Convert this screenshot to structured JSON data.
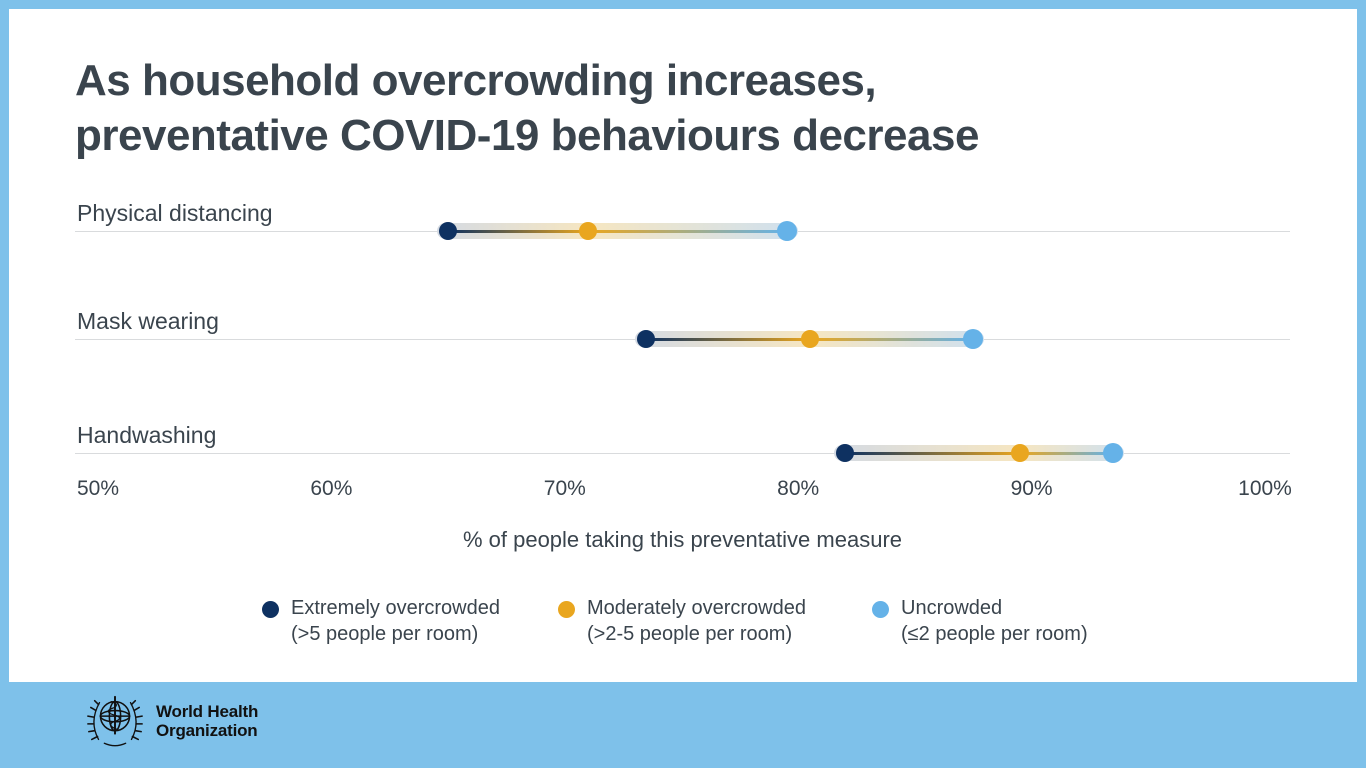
{
  "title": {
    "line1": "As household overcrowding increases,",
    "line2": "preventative COVID-19 behaviours decrease"
  },
  "chart_data": {
    "type": "scatter",
    "variant": "dumbbell-dot-plot",
    "categories": [
      "Physical distancing",
      "Mask wearing",
      "Handwashing"
    ],
    "series": [
      {
        "name": "Extremely overcrowded",
        "detail": "(>5 people per room)",
        "color": "#0e3161",
        "values": [
          65,
          73.5,
          82
        ]
      },
      {
        "name": "Moderately overcrowded",
        "detail": "(>2-5 people per room)",
        "color": "#e9a61f",
        "values": [
          71,
          80.5,
          89.5
        ]
      },
      {
        "name": "Uncrowded",
        "detail": "(≤2 people per room)",
        "color": "#65b2e8",
        "values": [
          79.5,
          87.5,
          93.5
        ]
      }
    ],
    "xlabel": "% of people taking this preventative measure",
    "xlim": [
      50,
      100
    ],
    "xtick_values": [
      50,
      60,
      70,
      80,
      90,
      100
    ],
    "xtick_labels": [
      "50%",
      "60%",
      "70%",
      "80%",
      "90%",
      "100%"
    ],
    "grid": "horizontal category lines only",
    "legend_position": "bottom"
  },
  "legend": {
    "items": [
      {
        "name": "Extremely overcrowded",
        "detail": "(>5 people per room)"
      },
      {
        "name": "Moderately overcrowded",
        "detail": "(>2-5 people per room)"
      },
      {
        "name": "Uncrowded",
        "detail": "(≤2 people per room)"
      }
    ]
  },
  "footer": {
    "org_line1": "World Health",
    "org_line2": "Organization"
  },
  "colors": {
    "frame_blue": "#7ec1ea",
    "background": "#ffffff",
    "text": "#3a444d",
    "gridline": "#d9dbdd",
    "navy": "#0e3161",
    "orange": "#e9a61f",
    "sky": "#65b2e8",
    "navy_band_tint": "#d4dae3",
    "orange_band_tint": "#f6e6c1",
    "sky_band_tint": "#cfe0ef"
  }
}
